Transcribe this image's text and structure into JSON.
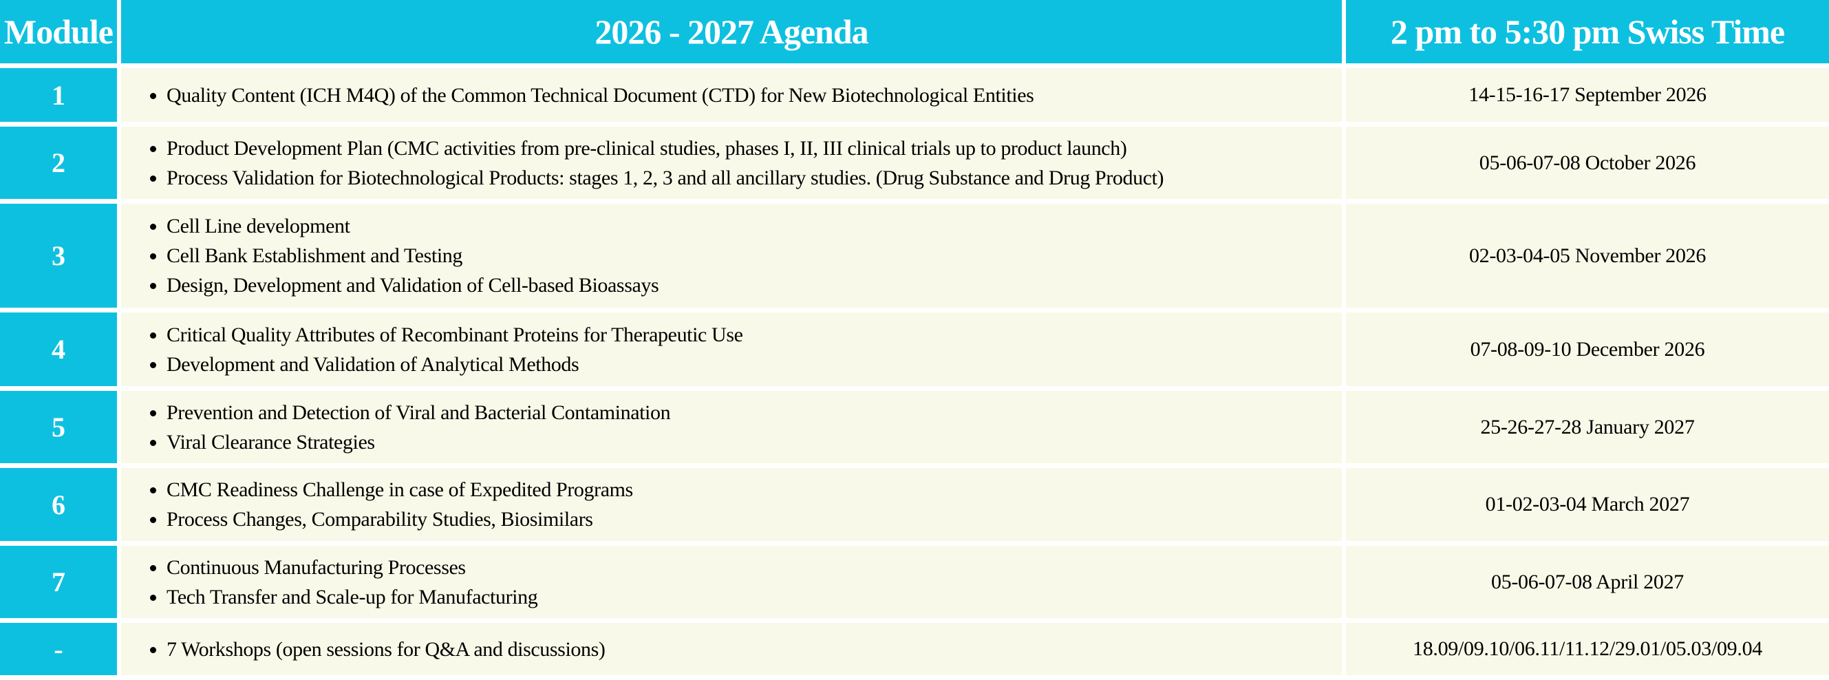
{
  "header": {
    "module": "Module",
    "agenda": "2026 - 2027 Agenda",
    "time": "2 pm to 5:30 pm Swiss Time"
  },
  "colors": {
    "header_bg": "#0EC0E0",
    "cell_bg": "#F8F9E8"
  },
  "rows": [
    {
      "module": "1",
      "items": [
        "Quality Content (ICH M4Q) of the Common Technical Document (CTD) for New Biotechnological Entities"
      ],
      "date": "14-15-16-17 September 2026"
    },
    {
      "module": "2",
      "items": [
        "Product Development Plan (CMC activities from pre-clinical studies, phases I, II, III clinical trials up to product launch)",
        "Process Validation for Biotechnological Products: stages 1, 2, 3 and all ancillary studies. (Drug Substance and Drug Product)"
      ],
      "date": "05-06-07-08 October 2026"
    },
    {
      "module": "3",
      "items": [
        "Cell Line development",
        "Cell Bank Establishment and Testing",
        "Design, Development and Validation of Cell-based Bioassays"
      ],
      "date": "02-03-04-05 November 2026"
    },
    {
      "module": "4",
      "items": [
        "Critical Quality Attributes of Recombinant Proteins for Therapeutic Use",
        "Development and Validation of Analytical Methods"
      ],
      "date": "07-08-09-10 December 2026"
    },
    {
      "module": "5",
      "items": [
        "Prevention and Detection of Viral and Bacterial Contamination",
        "Viral Clearance Strategies"
      ],
      "date": "25-26-27-28 January 2027"
    },
    {
      "module": "6",
      "items": [
        "CMC Readiness Challenge in case of Expedited Programs",
        "Process Changes, Comparability Studies, Biosimilars"
      ],
      "date": "01-02-03-04 March 2027"
    },
    {
      "module": "7",
      "items": [
        "Continuous Manufacturing Processes",
        "Tech Transfer and Scale-up for Manufacturing"
      ],
      "date": "05-06-07-08 April 2027"
    },
    {
      "module": "-",
      "items": [
        "7 Workshops (open sessions for Q&A and discussions)"
      ],
      "date": "18.09/09.10/06.11/11.12/29.01/05.03/09.04"
    }
  ]
}
